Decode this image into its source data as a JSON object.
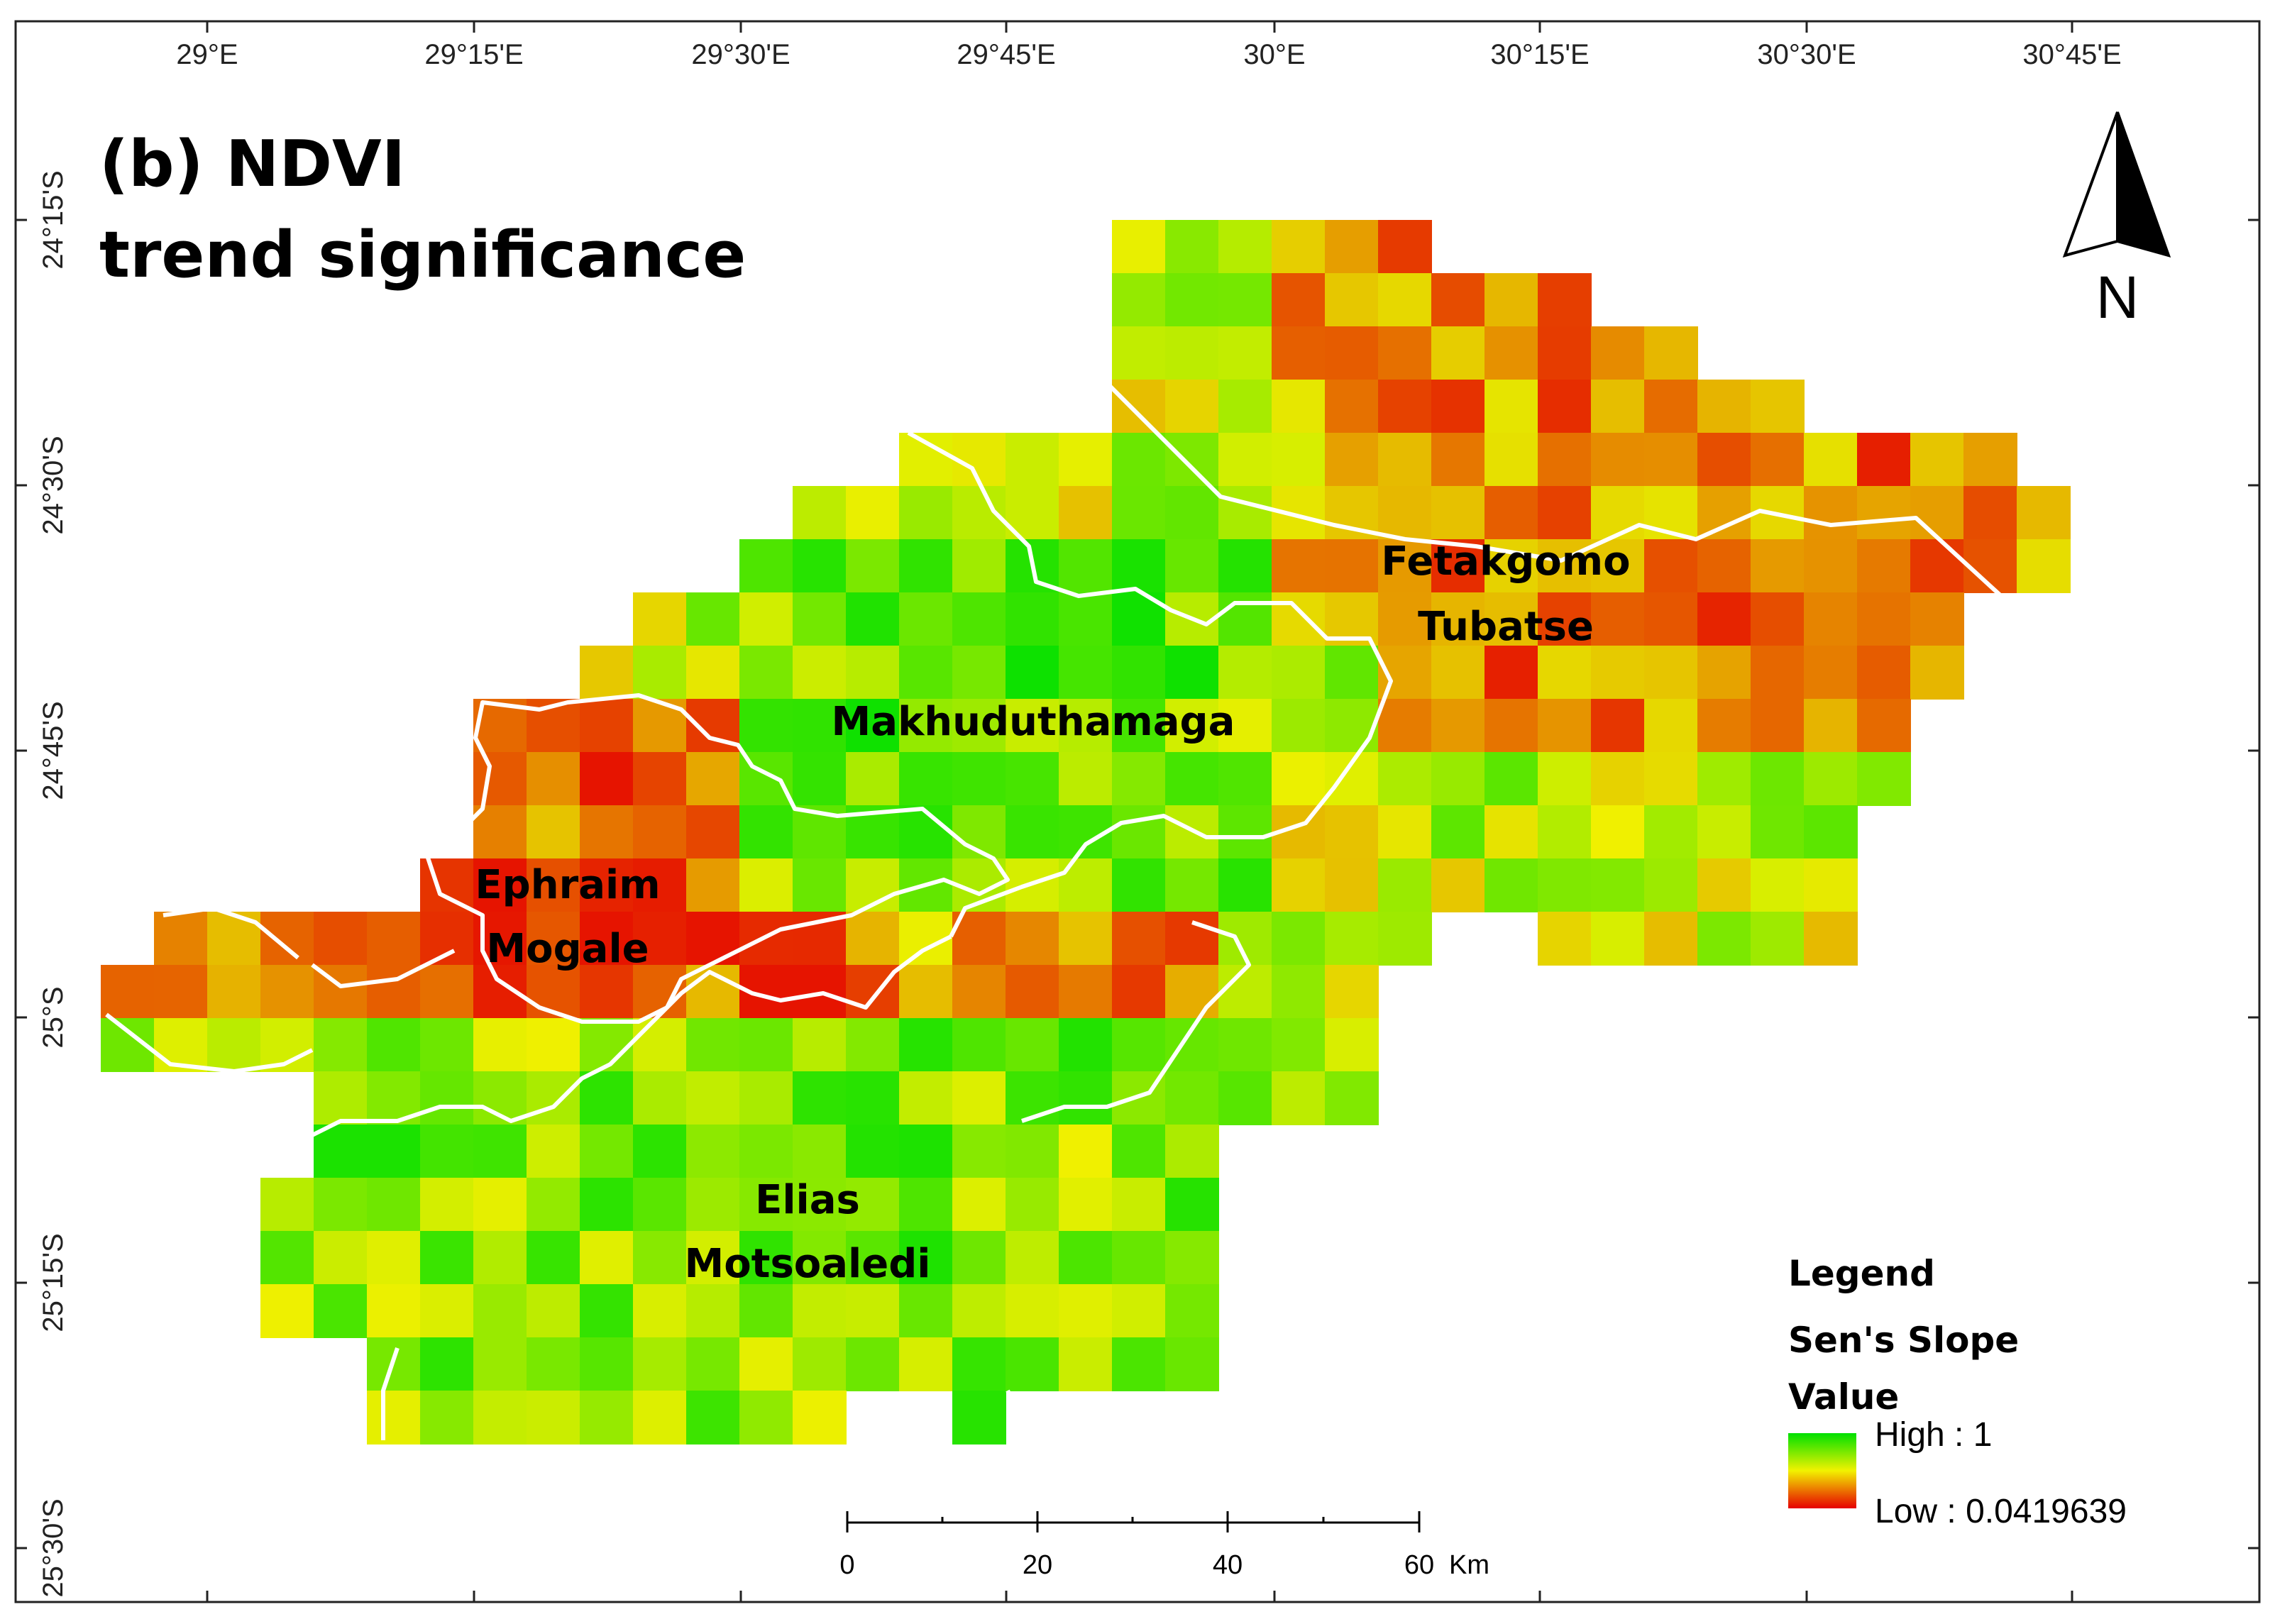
{
  "title": {
    "line1": "(b) NDVI",
    "line2": "trend significance"
  },
  "graticule": {
    "top_labels": [
      "29°E",
      "29°15'E",
      "29°30'E",
      "29°45'E",
      "30°E",
      "30°15'E",
      "30°30'E",
      "30°45'E"
    ],
    "left_labels": [
      "24°15'S",
      "24°30'S",
      "24°45'S",
      "25°S",
      "25°15'S",
      "25°30'S"
    ]
  },
  "municipalities": [
    {
      "name": "Fetakgomo",
      "line2": "Tubatse"
    },
    {
      "name": "Makhuduthamaga",
      "line2": ""
    },
    {
      "name": "Ephraim",
      "line2": "Mogale"
    },
    {
      "name": "Elias",
      "line2": "Motsoaledi"
    }
  ],
  "north_arrow": {
    "label": "N"
  },
  "legend": {
    "heading": "Legend",
    "field_line1": "Sen's Slope",
    "field_line2": "Value",
    "high_label": "High : 1",
    "low_label": "Low : 0.0419639",
    "color_high": "#00e000",
    "color_mid": "#f2f200",
    "color_low": "#e60000"
  },
  "scale_bar": {
    "ticks": [
      "0",
      "20",
      "40",
      "60"
    ],
    "unit": "Km"
  },
  "colors": {
    "boundary": "#ffffff",
    "frame": "#222222"
  }
}
